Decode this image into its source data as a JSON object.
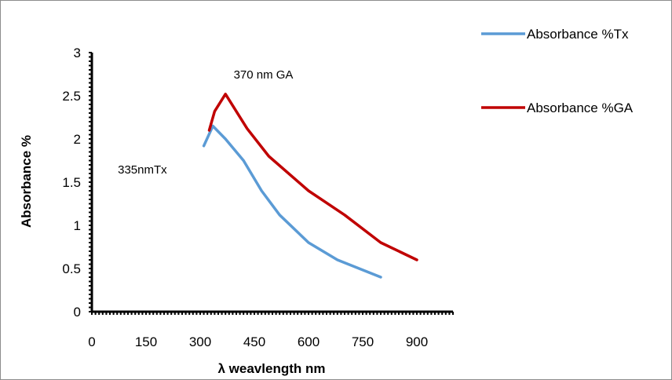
{
  "chart_data": {
    "type": "line",
    "title": "",
    "xlabel": "λ weavlength nm",
    "ylabel": "Absorbance %",
    "xlim": [
      0,
      1000
    ],
    "ylim": [
      0,
      3
    ],
    "x_ticks": [
      0,
      150,
      300,
      450,
      600,
      750,
      900
    ],
    "x_tick_labels": [
      "0",
      "150",
      "300",
      "450",
      "600",
      "750",
      "900"
    ],
    "y_ticks": [
      0,
      0.5,
      1,
      1.5,
      2,
      2.5,
      3
    ],
    "y_tick_labels": [
      "0",
      "0.5",
      "1",
      "1.5",
      "2",
      "2.5",
      "3"
    ],
    "grid": false,
    "legend_position": "top-right",
    "series": [
      {
        "name": "Absorbance %Tx",
        "color": "#5b9bd5",
        "x": [
          310,
          335,
          370,
          420,
          470,
          520,
          600,
          680,
          800
        ],
        "y": [
          1.92,
          2.15,
          2.0,
          1.75,
          1.4,
          1.12,
          0.8,
          0.6,
          0.4
        ]
      },
      {
        "name": "Absorbance %GA",
        "color": "#c00000",
        "x": [
          325,
          340,
          370,
          430,
          490,
          600,
          700,
          800,
          900
        ],
        "y": [
          2.1,
          2.32,
          2.52,
          2.12,
          1.8,
          1.4,
          1.12,
          0.8,
          0.6
        ]
      }
    ],
    "annotations": [
      {
        "text": "370 nm GA",
        "x": 475,
        "y": 2.7
      },
      {
        "text": "335nmTx",
        "x": 140,
        "y": 1.6
      }
    ]
  }
}
